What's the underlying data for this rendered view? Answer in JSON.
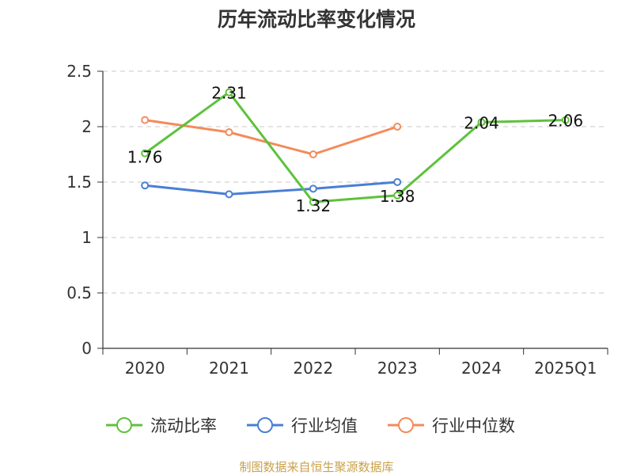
{
  "chart_data": {
    "type": "line",
    "title": "历年流动比率变化情况",
    "categories": [
      "2020",
      "2021",
      "2022",
      "2023",
      "2024",
      "2025Q1"
    ],
    "ylim": [
      0,
      2.5
    ],
    "yticks": [
      "0",
      "0.5",
      "1",
      "1.5",
      "2",
      "2.5"
    ],
    "grid": true,
    "legend_position": "bottom",
    "series": [
      {
        "name": "流动比率",
        "color": "#5ec23b",
        "values": [
          1.76,
          2.31,
          1.32,
          1.38,
          2.04,
          2.06
        ],
        "labels": [
          "1.76",
          "2.31",
          "1.32",
          "1.38",
          "2.04",
          "2.06"
        ],
        "show_labels": true
      },
      {
        "name": "行业均值",
        "color": "#4a7fd4",
        "values": [
          1.47,
          1.39,
          1.44,
          1.5,
          null,
          null
        ],
        "show_labels": false
      },
      {
        "name": "行业中位数",
        "color": "#f38b5a",
        "values": [
          2.06,
          1.95,
          1.75,
          2.0,
          null,
          null
        ],
        "show_labels": false
      }
    ]
  },
  "source": "制图数据来自恒生聚源数据库"
}
